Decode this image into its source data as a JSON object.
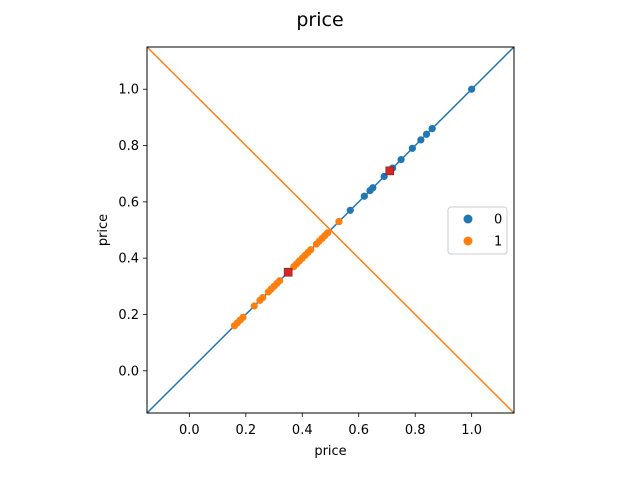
{
  "chart_data": {
    "type": "scatter",
    "title": "price",
    "xlabel": "price",
    "ylabel": "price",
    "xlim": [
      -0.15,
      1.15
    ],
    "ylim": [
      -0.15,
      1.15
    ],
    "xticks": [
      0.0,
      0.2,
      0.4,
      0.6,
      0.8,
      1.0
    ],
    "yticks": [
      0.0,
      0.2,
      0.4,
      0.6,
      0.8,
      1.0
    ],
    "xtick_labels": [
      "0.0",
      "0.2",
      "0.4",
      "0.6",
      "0.8",
      "1.0"
    ],
    "ytick_labels": [
      "0.0",
      "0.2",
      "0.4",
      "0.6",
      "0.8",
      "1.0"
    ],
    "grid": false,
    "legend_position": "right",
    "series": [
      {
        "name": "0",
        "color": "#1f77b4",
        "x": [
          0.53,
          0.57,
          0.62,
          0.64,
          0.65,
          0.69,
          0.72,
          0.75,
          0.79,
          0.82,
          0.84,
          0.86,
          1.0
        ],
        "y": [
          0.53,
          0.57,
          0.62,
          0.64,
          0.65,
          0.69,
          0.72,
          0.75,
          0.79,
          0.82,
          0.84,
          0.86,
          1.0
        ]
      },
      {
        "name": "1",
        "color": "#ff7f0e",
        "x": [
          0.16,
          0.17,
          0.18,
          0.19,
          0.23,
          0.25,
          0.26,
          0.28,
          0.29,
          0.3,
          0.31,
          0.32,
          0.35,
          0.37,
          0.38,
          0.39,
          0.4,
          0.41,
          0.42,
          0.43,
          0.45,
          0.46,
          0.47,
          0.48,
          0.49,
          0.53
        ],
        "y": [
          0.16,
          0.17,
          0.18,
          0.19,
          0.23,
          0.25,
          0.26,
          0.28,
          0.29,
          0.3,
          0.31,
          0.32,
          0.35,
          0.37,
          0.38,
          0.39,
          0.4,
          0.41,
          0.42,
          0.43,
          0.45,
          0.46,
          0.47,
          0.48,
          0.49,
          0.53
        ]
      }
    ],
    "lines": [
      {
        "color": "#1f77b4",
        "x": [
          -0.15,
          1.15
        ],
        "y": [
          -0.15,
          1.15
        ]
      },
      {
        "color": "#ff7f0e",
        "x": [
          -0.15,
          1.15
        ],
        "y": [
          1.15,
          -0.15
        ]
      }
    ],
    "centroids": {
      "color": "#d62728",
      "x": [
        0.35,
        0.71
      ],
      "y": [
        0.35,
        0.71
      ]
    }
  }
}
